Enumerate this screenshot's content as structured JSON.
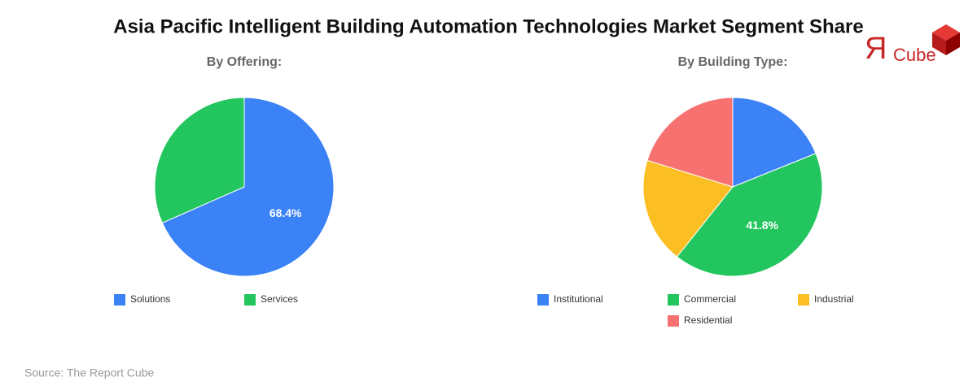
{
  "title": "Asia Pacific Intelligent Building Automation Technologies Market Segment Share",
  "source": "Source: The Report Cube",
  "logo": {
    "mark": "Я",
    "text": "Cube"
  },
  "chart_data": [
    {
      "type": "pie",
      "title": "By Offering:",
      "categories": [
        "Solutions",
        "Services"
      ],
      "values": [
        68.4,
        31.6
      ],
      "value_labels": [
        "68.4%",
        null
      ],
      "colors": [
        "#3b82f6",
        "#22c55e"
      ]
    },
    {
      "type": "pie",
      "title": "By Building Type:",
      "categories": [
        "Institutional",
        "Commercial",
        "Industrial",
        "Residential"
      ],
      "values": [
        18.9,
        41.8,
        19.1,
        20.2
      ],
      "value_labels": [
        null,
        "41.8%",
        null,
        null
      ],
      "colors": [
        "#3b82f6",
        "#22c55e",
        "#fbbf24",
        "#f87171"
      ]
    }
  ]
}
